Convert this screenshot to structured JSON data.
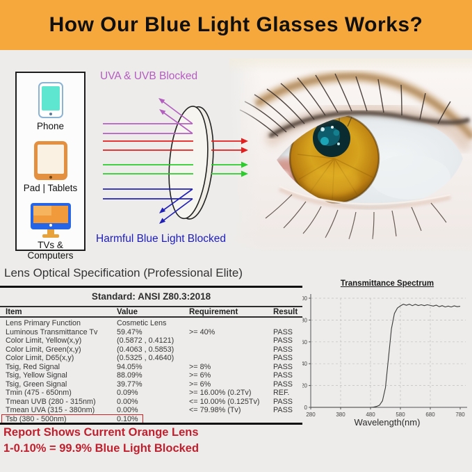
{
  "banner": {
    "title": "How Our Blue Light Glasses Works?",
    "bg_color": "#f6a83d"
  },
  "devices": {
    "items": [
      {
        "label": "Phone",
        "icon": "smartphone-icon"
      },
      {
        "label": "Pad | Tablets",
        "icon": "tablet-icon"
      },
      {
        "label": "TVs & Computers",
        "icon": "monitor-icon"
      }
    ]
  },
  "diagram": {
    "uv_label": "UVA & UVB Blocked",
    "blue_label": "Harmful Blue Light Blocked",
    "colors": {
      "uv_purple": "#b55cc1",
      "red_ray": "#e31e1e",
      "green_ray": "#2ccc2c",
      "blue_ray": "#2222b8"
    }
  },
  "spec": {
    "heading": "Lens Optical Specification (Professional Elite)",
    "standard": "Standard: ANSI Z80.3:2018",
    "columns": [
      "Item",
      "Value",
      "Requirement",
      "Result"
    ],
    "rows": [
      [
        "Lens Primary Function",
        "Cosmetic Lens",
        "",
        ""
      ],
      [
        "Luminous Transmittance Tv",
        "59.47%",
        ">= 40%",
        "PASS"
      ],
      [
        "Color Limit, Yellow(x,y)",
        "(0.5872 , 0.4121)",
        "",
        "PASS"
      ],
      [
        "Color Limit, Green(x,y)",
        "(0.4063 , 0.5853)",
        "",
        "PASS"
      ],
      [
        "Color Limit, D65(x,y)",
        "(0.5325 , 0.4640)",
        "",
        "PASS"
      ],
      [
        "Tsig, Red Signal",
        "94.05%",
        ">= 8%",
        "PASS"
      ],
      [
        "Tsig, Yellow Signal",
        "88.09%",
        ">= 6%",
        "PASS"
      ],
      [
        "Tsig, Green Signal",
        "39.77%",
        ">= 6%",
        "PASS"
      ],
      [
        "Tmin (475 - 650nm)",
        "0.09%",
        ">= 16.00% (0.2Tv)",
        "REF."
      ],
      [
        "Tmean UVB (280 - 315nm)",
        "0.00%",
        "<= 10.00% (0.125Tv)",
        "PASS"
      ],
      [
        "Tmean UVA (315 - 380nm)",
        "0.00%",
        "<= 79.98% (Tv)",
        "PASS"
      ],
      [
        "Tsb (380 - 500nm)",
        "0.10%",
        "",
        ""
      ]
    ],
    "highlight_row": 11,
    "highlight_color": "#cc2222"
  },
  "footnote": {
    "line1": "Report Shows Current Orange Lens",
    "line2": "1-0.10% = 99.9% Blue Light Blocked",
    "color": "#c0202e"
  },
  "chart_data": {
    "type": "line",
    "title": "Transmittance Spectrum",
    "xlabel": "Wavelength(nm)",
    "ylabel": "",
    "xlim": [
      280,
      780
    ],
    "ylim": [
      0,
      100
    ],
    "xticks": [
      280,
      380,
      480,
      580,
      680,
      780
    ],
    "yticks": [
      0,
      20,
      40,
      60,
      80,
      100
    ],
    "grid": true,
    "series": [
      {
        "name": "transmittance_percent",
        "x": [
          280,
          290,
          300,
          310,
          320,
          330,
          340,
          350,
          360,
          370,
          380,
          390,
          400,
          410,
          420,
          430,
          440,
          450,
          460,
          470,
          480,
          490,
          500,
          510,
          520,
          530,
          540,
          550,
          560,
          570,
          580,
          590,
          600,
          610,
          620,
          630,
          640,
          650,
          660,
          670,
          680,
          690,
          700,
          710,
          720,
          730,
          740,
          750,
          760,
          770,
          780
        ],
        "y": [
          0,
          0,
          0,
          0,
          0,
          0,
          0,
          0,
          0,
          0,
          0,
          0,
          0,
          0,
          0,
          0,
          0,
          0,
          0,
          0,
          0,
          0.2,
          0.8,
          2,
          6,
          18,
          45,
          72,
          86,
          91,
          93,
          94.5,
          93.5,
          94.5,
          93.2,
          94.3,
          93.3,
          94,
          93.2,
          94,
          93.4,
          92.8,
          93.6,
          92.2,
          93.2,
          92,
          92.8,
          92,
          93,
          92.2,
          92.6
        ]
      }
    ]
  }
}
